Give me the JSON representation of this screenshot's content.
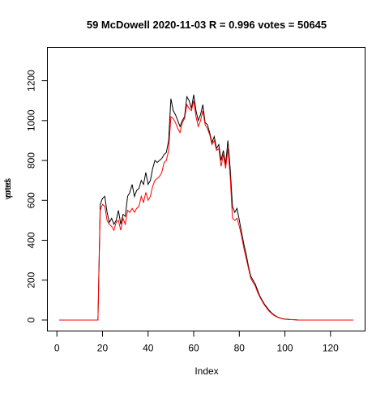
{
  "chart_data": {
    "type": "line",
    "title": "59 McDowell 2020-11-03 R = 0.996 votes = 50645",
    "xlabel": "Index",
    "ylabels": [
      "votes",
      "pred"
    ],
    "x": [
      1,
      2,
      3,
      4,
      5,
      6,
      7,
      8,
      9,
      10,
      11,
      12,
      13,
      14,
      15,
      16,
      17,
      18,
      19,
      20,
      21,
      22,
      23,
      24,
      25,
      26,
      27,
      28,
      29,
      30,
      31,
      32,
      33,
      34,
      35,
      36,
      37,
      38,
      39,
      40,
      41,
      42,
      43,
      44,
      45,
      46,
      47,
      48,
      49,
      50,
      51,
      52,
      53,
      54,
      55,
      56,
      57,
      58,
      59,
      60,
      61,
      62,
      63,
      64,
      65,
      66,
      67,
      68,
      69,
      70,
      71,
      72,
      73,
      74,
      75,
      76,
      77,
      78,
      79,
      80,
      81,
      82,
      83,
      84,
      85,
      86,
      87,
      88,
      89,
      90,
      91,
      92,
      93,
      94,
      95,
      96,
      97,
      98,
      99,
      100,
      101,
      102,
      103,
      104,
      105,
      106,
      107,
      108,
      109,
      110,
      111,
      112,
      113,
      114,
      115,
      116,
      117,
      118,
      119,
      120,
      121,
      122,
      123,
      124,
      125,
      126,
      127,
      128,
      129,
      130
    ],
    "series": [
      {
        "color": "#000000",
        "values": [
          0,
          0,
          0,
          0,
          0,
          0,
          0,
          0,
          0,
          0,
          0,
          0,
          0,
          0,
          0,
          0,
          0,
          0,
          580,
          610,
          620,
          540,
          490,
          510,
          480,
          500,
          550,
          480,
          530,
          520,
          620,
          640,
          680,
          620,
          650,
          660,
          700,
          680,
          740,
          680,
          700,
          760,
          800,
          790,
          800,
          810,
          830,
          840,
          900,
          1110,
          1050,
          1030,
          1000,
          970,
          1000,
          1020,
          1120,
          1100,
          1060,
          1130,
          1050,
          1000,
          1030,
          1080,
          990,
          980,
          940,
          890,
          920,
          860,
          880,
          800,
          850,
          780,
          900,
          760,
          570,
          540,
          560,
          500,
          440,
          380,
          330,
          270,
          220,
          200,
          180,
          150,
          120,
          100,
          80,
          65,
          50,
          38,
          28,
          20,
          14,
          10,
          7,
          5,
          4,
          3,
          2,
          2,
          1,
          0,
          0,
          0,
          0,
          0,
          0,
          0,
          0,
          0,
          0,
          0,
          0,
          0,
          0,
          0,
          0,
          0,
          0,
          0,
          0,
          0,
          0,
          0,
          0,
          0
        ]
      },
      {
        "color": "#ff0000",
        "values": [
          0,
          0,
          0,
          0,
          0,
          0,
          0,
          0,
          0,
          0,
          0,
          0,
          0,
          0,
          0,
          0,
          0,
          0,
          550,
          580,
          570,
          500,
          480,
          470,
          450,
          490,
          500,
          450,
          510,
          480,
          550,
          540,
          560,
          540,
          560,
          570,
          620,
          590,
          640,
          600,
          620,
          670,
          700,
          710,
          720,
          740,
          790,
          800,
          850,
          1020,
          1010,
          990,
          960,
          940,
          990,
          1010,
          1080,
          1060,
          1050,
          1100,
          1020,
          970,
          1000,
          1050,
          980,
          960,
          930,
          880,
          900,
          850,
          860,
          770,
          830,
          760,
          860,
          720,
          510,
          500,
          510,
          470,
          420,
          360,
          310,
          260,
          210,
          190,
          170,
          140,
          115,
          95,
          75,
          60,
          45,
          35,
          25,
          18,
          13,
          9,
          6,
          4,
          3,
          2,
          2,
          1,
          1,
          0,
          0,
          0,
          0,
          0,
          0,
          0,
          0,
          0,
          0,
          0,
          0,
          0,
          0,
          0,
          0,
          0,
          0,
          0,
          0,
          0,
          0,
          0,
          0,
          0
        ]
      }
    ],
    "xlim": [
      -4.16,
      135.16
    ],
    "xticks": [
      0,
      20,
      40,
      60,
      80,
      100,
      120
    ],
    "ylim": [
      -55,
      1367
    ],
    "yticks": [
      0,
      200,
      400,
      600,
      800,
      1000,
      1200
    ]
  }
}
